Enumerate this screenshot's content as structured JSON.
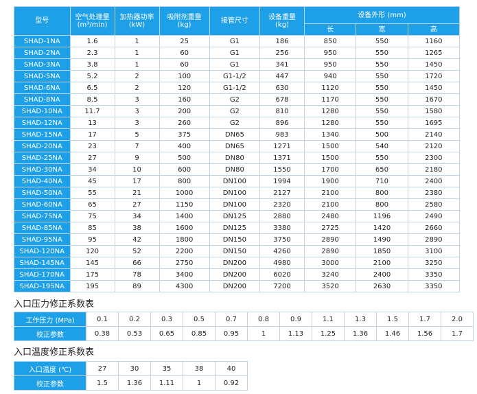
{
  "main_table": {
    "headers": {
      "model": "型号",
      "air": "空气处理量\n(m³/min)",
      "power": "加热器功率\n(kW)",
      "adsorbent": "吸附剂重量\n(kg)",
      "pipe": "接管尺寸",
      "weight": "设备重量\n(kg)",
      "dims": "设备外形 (mm)",
      "length": "长",
      "width": "宽",
      "height": "高"
    },
    "rows": [
      [
        "SHAD-1NA",
        "1.6",
        "1",
        "25",
        "G1",
        "186",
        "850",
        "550",
        "1160"
      ],
      [
        "SHAD-2NA",
        "2.3",
        "1",
        "60",
        "G1",
        "256",
        "950",
        "550",
        "1265"
      ],
      [
        "SHAD-3NA",
        "3.8",
        "1",
        "60",
        "G1",
        "341",
        "950",
        "550",
        "1450"
      ],
      [
        "SHAD-5NA",
        "5.2",
        "2",
        "100",
        "G1-1/2",
        "447",
        "940",
        "550",
        "1720"
      ],
      [
        "SHAD-6NA",
        "6.5",
        "2",
        "120",
        "G1-1/2",
        "630",
        "1120",
        "550",
        "1450"
      ],
      [
        "SHAD-8NA",
        "8.5",
        "3",
        "160",
        "G2",
        "678",
        "1170",
        "550",
        "1670"
      ],
      [
        "SHAD-10NA",
        "11.7",
        "3",
        "200",
        "G2",
        "810",
        "1280",
        "550",
        "1580"
      ],
      [
        "SHAD-12NA",
        "13",
        "3",
        "260",
        "G2",
        "896",
        "1280",
        "550",
        "1695"
      ],
      [
        "SHAD-15NA",
        "17",
        "5",
        "375",
        "DN65",
        "983",
        "1340",
        "500",
        "2140"
      ],
      [
        "SHAD-20NA",
        "23",
        "7",
        "400",
        "DN65",
        "1271",
        "1500",
        "540",
        "2120"
      ],
      [
        "SHAD-25NA",
        "27",
        "9",
        "500",
        "DN80",
        "1371",
        "1500",
        "550",
        "2300"
      ],
      [
        "SHAD-30NA",
        "34",
        "10",
        "600",
        "DN80",
        "1550",
        "1700",
        "650",
        "2180"
      ],
      [
        "SHAD-40NA",
        "45",
        "17",
        "800",
        "DN100",
        "1994",
        "1900",
        "710",
        "2400"
      ],
      [
        "SHAD-50NA",
        "55",
        "21",
        "1000",
        "DN100",
        "2127",
        "2100",
        "800",
        "2380"
      ],
      [
        "SHAD-60NA",
        "65",
        "27",
        "1150",
        "DN100",
        "2320",
        "2100",
        "800",
        "2580"
      ],
      [
        "SHAD-75NA",
        "75",
        "34",
        "1400",
        "DN125",
        "2880",
        "2480",
        "1196",
        "2490"
      ],
      [
        "SHAD-85NA",
        "85",
        "38",
        "1600",
        "DN125",
        "3380",
        "2725",
        "1420",
        "2660"
      ],
      [
        "SHAD-95NA",
        "95",
        "42",
        "1800",
        "DN150",
        "3750",
        "2890",
        "1490",
        "2890"
      ],
      [
        "SHAD-120NA",
        "120",
        "52",
        "2200",
        "DN150",
        "4260",
        "2890",
        "1850",
        "3100"
      ],
      [
        "SHAD-145NA",
        "145",
        "66",
        "2750",
        "DN200",
        "4980",
        "3000",
        "2100",
        "3250"
      ],
      [
        "SHAD-170NA",
        "175",
        "78",
        "3400",
        "DN200",
        "6020",
        "3240",
        "2400",
        "3350"
      ],
      [
        "SHAD-195NA",
        "195",
        "89",
        "4300",
        "DN200",
        "7200",
        "3520",
        "2630",
        "3350"
      ]
    ]
  },
  "pressure_section": {
    "title": "入口压力修正系数表",
    "row_labels": [
      "工作压力 (MPa)",
      "校正参数"
    ],
    "values": [
      [
        "0.1",
        "0.2",
        "0.3",
        "0.5",
        "0.7",
        "0.8",
        "0.9",
        "1.1",
        "1.3",
        "1.5",
        "1.7",
        "2.0"
      ],
      [
        "0.38",
        "0.53",
        "0.65",
        "0.85",
        "0.95",
        "1",
        "1.13",
        "1.25",
        "1.36",
        "1.46",
        "1.56",
        "1.7"
      ]
    ]
  },
  "temperature_section": {
    "title": "入口温度修正系数表",
    "row_labels": [
      "入口温度 (℃)",
      "校正参数"
    ],
    "values": [
      [
        "27",
        "30",
        "35",
        "38",
        "40"
      ],
      [
        "1.5",
        "1.36",
        "1.11",
        "1",
        "0.92"
      ]
    ]
  },
  "colors": {
    "header_bg": "#1ea0e8",
    "header_text": "#ffffff",
    "border": "#bcd3e8"
  }
}
